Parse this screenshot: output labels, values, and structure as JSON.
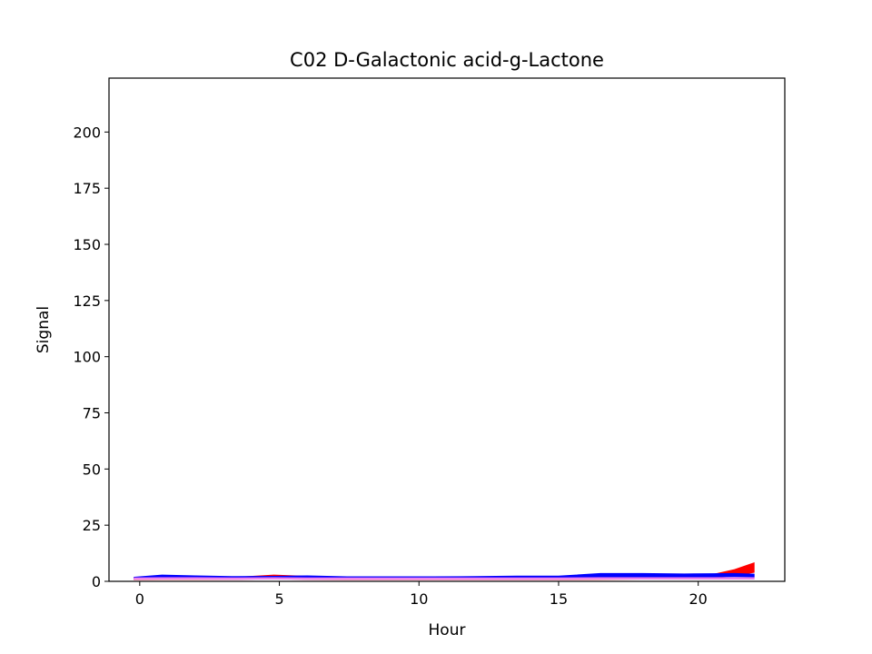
{
  "chart_data": {
    "type": "area",
    "title": "C02 D-Galactonic acid-g-Lactone",
    "xlabel": "Hour",
    "ylabel": "Signal",
    "xlim": [
      -1.1,
      23.1
    ],
    "ylim": [
      0,
      224
    ],
    "xticks": [
      0,
      5,
      10,
      15,
      20
    ],
    "yticks": [
      0,
      25,
      50,
      75,
      100,
      125,
      150,
      175,
      200
    ],
    "grid": false,
    "legend": "none",
    "series": [
      {
        "color": "#ff0000",
        "x": [
          -0.2,
          0.8,
          2.0,
          3.5,
          4.8,
          6.0,
          7.5,
          9.0,
          10.5,
          12.0,
          13.5,
          15.0,
          16.5,
          18.0,
          19.5,
          20.5,
          21.3,
          22.0
        ],
        "lower": [
          0.8,
          0.9,
          0.9,
          0.9,
          1.1,
          0.9,
          0.8,
          0.8,
          0.8,
          0.8,
          0.8,
          0.8,
          0.9,
          1.0,
          1.2,
          1.6,
          2.6,
          4.0
        ],
        "upper": [
          1.6,
          1.8,
          1.9,
          1.8,
          2.8,
          2.2,
          1.8,
          1.8,
          1.7,
          1.8,
          1.8,
          1.8,
          2.0,
          2.1,
          2.4,
          3.0,
          5.2,
          8.2
        ]
      },
      {
        "color": "#0000ff",
        "x": [
          -0.2,
          0.8,
          2.0,
          3.5,
          4.8,
          6.0,
          7.5,
          9.0,
          10.5,
          12.0,
          13.5,
          15.0,
          16.5,
          18.0,
          19.5,
          20.5,
          21.3,
          22.0
        ],
        "lower": [
          1.0,
          1.5,
          1.4,
          1.3,
          1.4,
          1.4,
          1.2,
          1.2,
          1.2,
          1.2,
          1.3,
          1.3,
          1.8,
          1.9,
          1.8,
          2.0,
          2.1,
          2.0
        ],
        "upper": [
          1.8,
          2.8,
          2.4,
          2.1,
          2.2,
          2.4,
          2.0,
          2.0,
          2.0,
          2.1,
          2.3,
          2.3,
          3.5,
          3.5,
          3.3,
          3.4,
          3.5,
          3.2
        ]
      },
      {
        "color": "#ee82ee",
        "x": [
          -0.2,
          0.8,
          2.0,
          3.5,
          4.8,
          6.0,
          7.5,
          9.0,
          10.5,
          12.0,
          13.5,
          15.0,
          16.5,
          18.0,
          19.5,
          20.5,
          21.3,
          22.0
        ],
        "lower": [
          0.9,
          1.0,
          1.0,
          0.9,
          1.0,
          0.9,
          0.9,
          0.9,
          0.9,
          0.9,
          0.9,
          0.9,
          1.0,
          1.0,
          1.0,
          1.0,
          1.0,
          1.0
        ],
        "upper": [
          1.5,
          1.6,
          1.6,
          1.5,
          1.6,
          1.5,
          1.5,
          1.5,
          1.5,
          1.5,
          1.5,
          1.5,
          1.6,
          1.6,
          1.6,
          1.6,
          1.6,
          1.6
        ]
      }
    ]
  }
}
